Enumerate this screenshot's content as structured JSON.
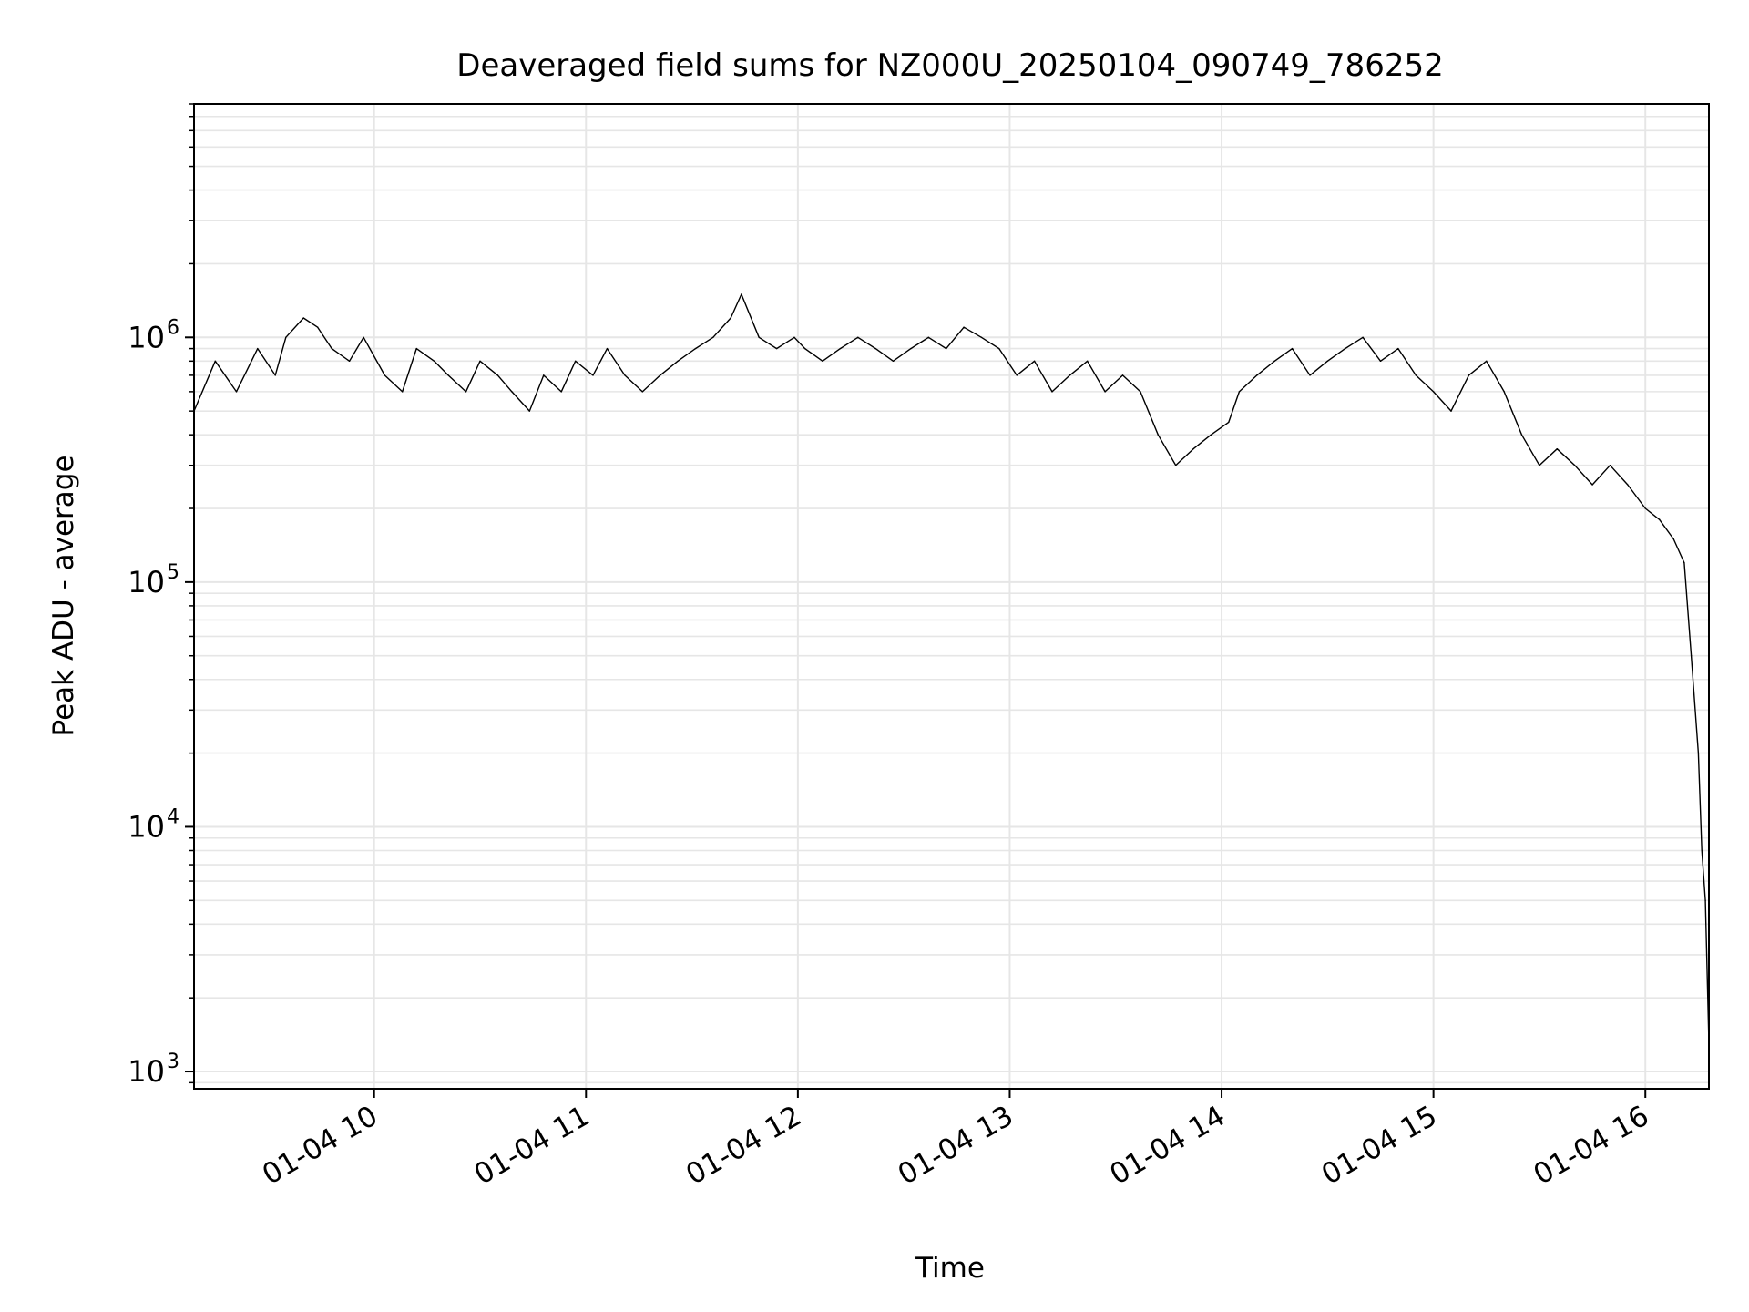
{
  "chart_data": {
    "type": "line",
    "title": "Deaveraged field sums for NZ000U_20250104_090749_786252",
    "xlabel": "Time",
    "ylabel": "Peak ADU - average",
    "y_scale": "log",
    "ylim": [
      850,
      9000000
    ],
    "xlim": [
      "2025-01-04 09:09",
      "2025-01-04 16:18"
    ],
    "grid": true,
    "line_color": "#000000",
    "x_ticks": [
      {
        "value": "2025-01-04 10:00",
        "label": "01-04 10"
      },
      {
        "value": "2025-01-04 11:00",
        "label": "01-04 11"
      },
      {
        "value": "2025-01-04 12:00",
        "label": "01-04 12"
      },
      {
        "value": "2025-01-04 13:00",
        "label": "01-04 13"
      },
      {
        "value": "2025-01-04 14:00",
        "label": "01-04 14"
      },
      {
        "value": "2025-01-04 15:00",
        "label": "01-04 15"
      },
      {
        "value": "2025-01-04 16:00",
        "label": "01-04 16"
      }
    ],
    "y_ticks": [
      {
        "value": 1000,
        "base": "10",
        "exp": "3"
      },
      {
        "value": 10000,
        "base": "10",
        "exp": "4"
      },
      {
        "value": 100000,
        "base": "10",
        "exp": "5"
      },
      {
        "value": 1000000,
        "base": "10",
        "exp": "6"
      }
    ],
    "series": [
      {
        "x": [
          "2025-01-04 09:09",
          "2025-01-04 09:15",
          "2025-01-04 09:21",
          "2025-01-04 09:27",
          "2025-01-04 09:32",
          "2025-01-04 09:35",
          "2025-01-04 09:40",
          "2025-01-04 09:44",
          "2025-01-04 09:48",
          "2025-01-04 09:53",
          "2025-01-04 09:57",
          "2025-01-04 10:03",
          "2025-01-04 10:08",
          "2025-01-04 10:12",
          "2025-01-04 10:17",
          "2025-01-04 10:21",
          "2025-01-04 10:26",
          "2025-01-04 10:30",
          "2025-01-04 10:35",
          "2025-01-04 10:39",
          "2025-01-04 10:44",
          "2025-01-04 10:48",
          "2025-01-04 10:53",
          "2025-01-04 10:57",
          "2025-01-04 11:02",
          "2025-01-04 11:06",
          "2025-01-04 11:11",
          "2025-01-04 11:16",
          "2025-01-04 11:21",
          "2025-01-04 11:26",
          "2025-01-04 11:31",
          "2025-01-04 11:36",
          "2025-01-04 11:41",
          "2025-01-04 11:44",
          "2025-01-04 11:49",
          "2025-01-04 11:54",
          "2025-01-04 11:59",
          "2025-01-04 12:02",
          "2025-01-04 12:07",
          "2025-01-04 12:12",
          "2025-01-04 12:17",
          "2025-01-04 12:22",
          "2025-01-04 12:27",
          "2025-01-04 12:32",
          "2025-01-04 12:37",
          "2025-01-04 12:42",
          "2025-01-04 12:47",
          "2025-01-04 12:52",
          "2025-01-04 12:57",
          "2025-01-04 13:02",
          "2025-01-04 13:07",
          "2025-01-04 13:12",
          "2025-01-04 13:17",
          "2025-01-04 13:22",
          "2025-01-04 13:27",
          "2025-01-04 13:32",
          "2025-01-04 13:37",
          "2025-01-04 13:42",
          "2025-01-04 13:47",
          "2025-01-04 13:52",
          "2025-01-04 13:57",
          "2025-01-04 14:02",
          "2025-01-04 14:05",
          "2025-01-04 14:10",
          "2025-01-04 14:15",
          "2025-01-04 14:20",
          "2025-01-04 14:25",
          "2025-01-04 14:30",
          "2025-01-04 14:35",
          "2025-01-04 14:40",
          "2025-01-04 14:45",
          "2025-01-04 14:50",
          "2025-01-04 14:55",
          "2025-01-04 15:00",
          "2025-01-04 15:05",
          "2025-01-04 15:10",
          "2025-01-04 15:15",
          "2025-01-04 15:20",
          "2025-01-04 15:25",
          "2025-01-04 15:30",
          "2025-01-04 15:35",
          "2025-01-04 15:40",
          "2025-01-04 15:45",
          "2025-01-04 15:50",
          "2025-01-04 15:55",
          "2025-01-04 16:00",
          "2025-01-04 16:04",
          "2025-01-04 16:08",
          "2025-01-04 16:11",
          "2025-01-04 16:13",
          "2025-01-04 16:15",
          "2025-01-04 16:16",
          "2025-01-04 16:17",
          "2025-01-04 16:18"
        ],
        "y": [
          500000,
          800000,
          600000,
          900000,
          700000,
          1000000,
          1200000,
          1100000,
          900000,
          800000,
          1000000,
          700000,
          600000,
          900000,
          800000,
          700000,
          600000,
          800000,
          700000,
          600000,
          500000,
          700000,
          600000,
          800000,
          700000,
          900000,
          700000,
          600000,
          700000,
          800000,
          900000,
          1000000,
          1200000,
          1500000,
          1000000,
          900000,
          1000000,
          900000,
          800000,
          900000,
          1000000,
          900000,
          800000,
          900000,
          1000000,
          900000,
          1100000,
          1000000,
          900000,
          700000,
          800000,
          600000,
          700000,
          800000,
          600000,
          700000,
          600000,
          400000,
          300000,
          350000,
          400000,
          450000,
          600000,
          700000,
          800000,
          900000,
          700000,
          800000,
          900000,
          1000000,
          800000,
          900000,
          700000,
          600000,
          500000,
          700000,
          800000,
          600000,
          400000,
          300000,
          350000,
          300000,
          250000,
          300000,
          250000,
          200000,
          180000,
          150000,
          120000,
          50000,
          20000,
          8000,
          5000,
          1300
        ]
      }
    ]
  }
}
